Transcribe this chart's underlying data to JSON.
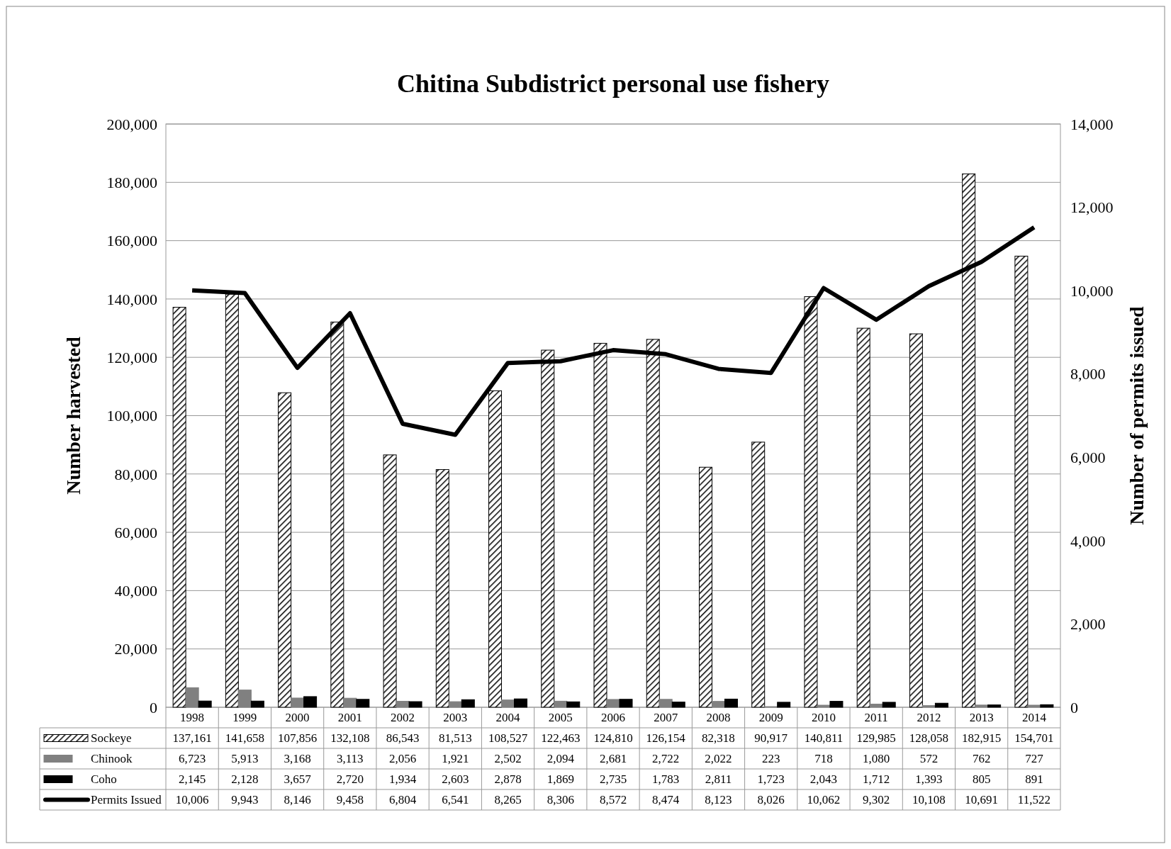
{
  "chart_data": {
    "type": "bar",
    "title": "Chitina Subdistrict personal use fishery",
    "ylabel": "Number harvested",
    "y2label": "Number of permits issued",
    "categories": [
      "1998",
      "1999",
      "2000",
      "2001",
      "2002",
      "2003",
      "2004",
      "2005",
      "2006",
      "2007",
      "2008",
      "2009",
      "2010",
      "2011",
      "2012",
      "2013",
      "2014"
    ],
    "series": [
      {
        "name": "Sockeye",
        "color": "#000000",
        "values": [
          137161,
          141658,
          107856,
          132108,
          86543,
          81513,
          108527,
          122463,
          124810,
          126154,
          82318,
          90917,
          140811,
          129985,
          128058,
          182915,
          154701
        ],
        "value_labels": [
          "137,161",
          "141,658",
          "107,856",
          "132,108",
          "86,543",
          "81,513",
          "108,527",
          "122,463",
          "124,810",
          "126,154",
          "82,318",
          "90,917",
          "140,811",
          "129,985",
          "128,058",
          "182,915",
          "154,701"
        ]
      },
      {
        "name": "Chinook",
        "color": "#808080",
        "values": [
          6723,
          5913,
          3168,
          3113,
          2056,
          1921,
          2502,
          2094,
          2681,
          2722,
          2022,
          223,
          718,
          1080,
          572,
          762,
          727
        ],
        "value_labels": [
          "6,723",
          "5,913",
          "3,168",
          "3,113",
          "2,056",
          "1,921",
          "2,502",
          "2,094",
          "2,681",
          "2,722",
          "2,022",
          "223",
          "718",
          "1,080",
          "572",
          "762",
          "727"
        ]
      },
      {
        "name": "Coho",
        "color": "#000000",
        "values": [
          2145,
          2128,
          3657,
          2720,
          1934,
          2603,
          2878,
          1869,
          2735,
          1783,
          2811,
          1723,
          2043,
          1712,
          1393,
          805,
          891
        ],
        "value_labels": [
          "2,145",
          "2,128",
          "3,657",
          "2,720",
          "1,934",
          "2,603",
          "2,878",
          "1,869",
          "2,735",
          "1,783",
          "2,811",
          "1,723",
          "2,043",
          "1,712",
          "1,393",
          "805",
          "891"
        ]
      },
      {
        "name": "Permits Issued",
        "type": "line",
        "axis": "y2",
        "color": "#000000",
        "values": [
          10006,
          9943,
          8146,
          9458,
          6804,
          6541,
          8265,
          8306,
          8572,
          8474,
          8123,
          8026,
          10062,
          9302,
          10108,
          10691,
          11522
        ],
        "value_labels": [
          "10,006",
          "9,943",
          "8,146",
          "9,458",
          "6,804",
          "6,541",
          "8,265",
          "8,306",
          "8,572",
          "8,474",
          "8,123",
          "8,026",
          "10,062",
          "9,302",
          "10,108",
          "10,691",
          "11,522"
        ]
      }
    ],
    "ylim": [
      0,
      200000
    ],
    "yticks": [
      {
        "value": 0,
        "label": "0"
      },
      {
        "value": 20000,
        "label": "20,000"
      },
      {
        "value": 40000,
        "label": "40,000"
      },
      {
        "value": 60000,
        "label": "60,000"
      },
      {
        "value": 80000,
        "label": "80,000"
      },
      {
        "value": 100000,
        "label": "100,000"
      },
      {
        "value": 120000,
        "label": "120,000"
      },
      {
        "value": 140000,
        "label": "140,000"
      },
      {
        "value": 160000,
        "label": "160,000"
      },
      {
        "value": 180000,
        "label": "180,000"
      },
      {
        "value": 200000,
        "label": "200,000"
      }
    ],
    "y2lim": [
      0,
      14000
    ],
    "y2ticks": [
      {
        "value": 0,
        "label": "0"
      },
      {
        "value": 2000,
        "label": "2,000"
      },
      {
        "value": 4000,
        "label": "4,000"
      },
      {
        "value": 6000,
        "label": "6,000"
      },
      {
        "value": 8000,
        "label": "8,000"
      },
      {
        "value": 10000,
        "label": "10,000"
      },
      {
        "value": 12000,
        "label": "12,000"
      },
      {
        "value": 14000,
        "label": "14,000"
      }
    ],
    "grid": "y",
    "legend": "bottom"
  }
}
